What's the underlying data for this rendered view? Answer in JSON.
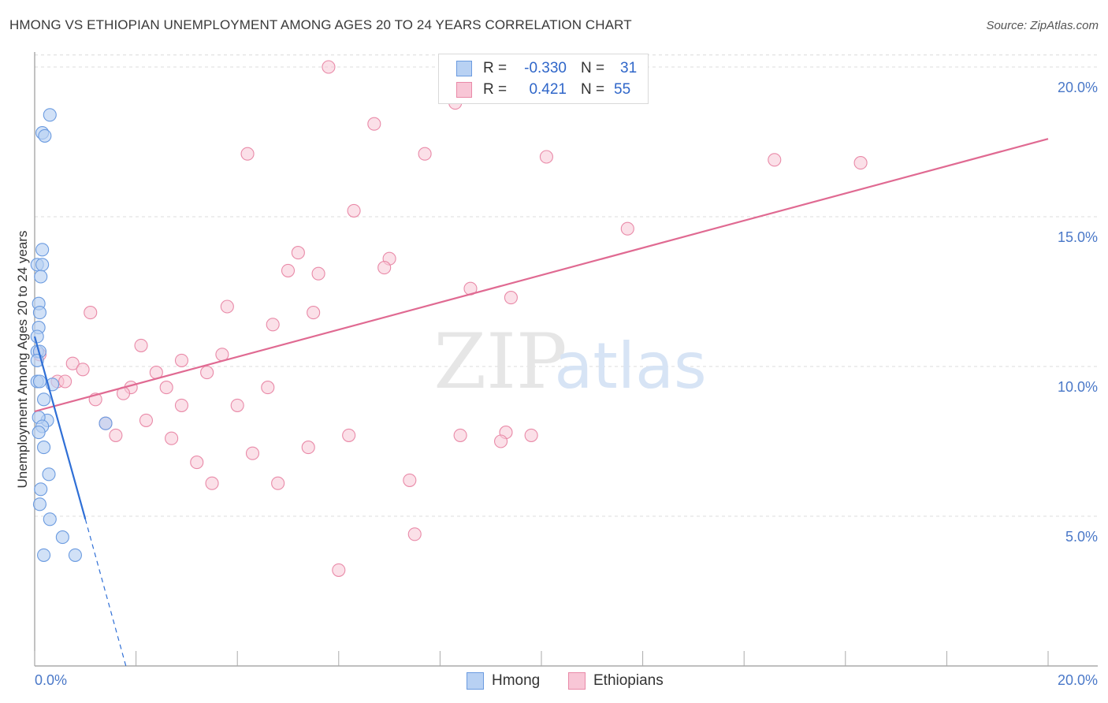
{
  "header": {
    "title": "HMONG VS ETHIOPIAN UNEMPLOYMENT AMONG AGES 20 TO 24 YEARS CORRELATION CHART",
    "source": "Source: ZipAtlas.com"
  },
  "watermark": {
    "zip": "ZIP",
    "atlas": "atlas"
  },
  "legend": {
    "rows": [
      {
        "r_label": "R =",
        "r_value": "-0.330",
        "n_label": "N =",
        "n_value": "31"
      },
      {
        "r_label": "R =",
        "r_value": "0.421",
        "n_label": "N =",
        "n_value": "55"
      }
    ]
  },
  "bottom_legend": {
    "hmong": "Hmong",
    "ethiopians": "Ethiopians"
  },
  "colors": {
    "hmong_fill": "#b8d1f3",
    "hmong_stroke": "#6b9be0",
    "hmong_line": "#2f6fd6",
    "eth_fill": "#f8c6d6",
    "eth_stroke": "#e98aa8",
    "eth_line": "#e06a92",
    "tick_text": "#4a78c8",
    "grid": "#dcdcdc"
  },
  "chart_data": {
    "type": "scatter",
    "title": "HMONG VS ETHIOPIAN UNEMPLOYMENT AMONG AGES 20 TO 24 YEARS CORRELATION CHART",
    "xlabel": "",
    "ylabel": "Unemployment Among Ages 20 to 24 years",
    "xlim": [
      0,
      20
    ],
    "ylim": [
      0,
      20.5
    ],
    "x_tick_labels": [
      "0.0%",
      "20.0%"
    ],
    "y_ticks": [
      5,
      10,
      15,
      20
    ],
    "y_tick_labels": [
      "5.0%",
      "10.0%",
      "15.0%",
      "20.0%"
    ],
    "series": [
      {
        "name": "Hmong",
        "r": -0.33,
        "n": 31,
        "points": [
          [
            0.3,
            18.4
          ],
          [
            0.15,
            17.8
          ],
          [
            0.2,
            17.7
          ],
          [
            0.15,
            13.9
          ],
          [
            0.05,
            13.4
          ],
          [
            0.15,
            13.4
          ],
          [
            0.12,
            13.0
          ],
          [
            0.08,
            12.1
          ],
          [
            0.1,
            11.8
          ],
          [
            0.08,
            11.3
          ],
          [
            0.05,
            11.0
          ],
          [
            0.05,
            10.5
          ],
          [
            0.1,
            10.5
          ],
          [
            0.05,
            10.2
          ],
          [
            0.35,
            9.4
          ],
          [
            0.05,
            9.5
          ],
          [
            0.18,
            8.9
          ],
          [
            0.25,
            8.2
          ],
          [
            0.08,
            8.3
          ],
          [
            0.15,
            8.0
          ],
          [
            0.08,
            7.8
          ],
          [
            1.4,
            8.1
          ],
          [
            0.18,
            7.3
          ],
          [
            0.28,
            6.4
          ],
          [
            0.12,
            5.9
          ],
          [
            0.1,
            5.4
          ],
          [
            0.3,
            4.9
          ],
          [
            0.55,
            4.3
          ],
          [
            0.18,
            3.7
          ],
          [
            0.8,
            3.7
          ],
          [
            0.1,
            9.5
          ]
        ],
        "trend": {
          "x0": 0.0,
          "y0": 11.0,
          "x1": 1.0,
          "y1": 4.9,
          "dash_x1": 1.8,
          "dash_y1": 0.0
        }
      },
      {
        "name": "Ethiopians",
        "r": 0.421,
        "n": 55,
        "points": [
          [
            5.8,
            20.0
          ],
          [
            8.3,
            18.8
          ],
          [
            6.7,
            18.1
          ],
          [
            4.2,
            17.1
          ],
          [
            7.7,
            17.1
          ],
          [
            10.1,
            17.0
          ],
          [
            14.6,
            16.9
          ],
          [
            16.3,
            16.8
          ],
          [
            6.3,
            15.2
          ],
          [
            11.7,
            14.6
          ],
          [
            5.2,
            13.8
          ],
          [
            7.0,
            13.6
          ],
          [
            5.0,
            13.2
          ],
          [
            5.6,
            13.1
          ],
          [
            6.9,
            13.3
          ],
          [
            8.6,
            12.6
          ],
          [
            9.4,
            12.3
          ],
          [
            3.8,
            12.0
          ],
          [
            1.1,
            11.8
          ],
          [
            5.5,
            11.8
          ],
          [
            4.7,
            11.4
          ],
          [
            2.1,
            10.7
          ],
          [
            0.1,
            10.4
          ],
          [
            2.9,
            10.2
          ],
          [
            3.7,
            10.4
          ],
          [
            0.75,
            10.1
          ],
          [
            0.95,
            9.9
          ],
          [
            2.4,
            9.8
          ],
          [
            3.4,
            9.8
          ],
          [
            0.45,
            9.5
          ],
          [
            0.6,
            9.5
          ],
          [
            2.6,
            9.3
          ],
          [
            1.9,
            9.3
          ],
          [
            4.6,
            9.3
          ],
          [
            1.75,
            9.1
          ],
          [
            1.2,
            8.9
          ],
          [
            2.9,
            8.7
          ],
          [
            4.0,
            8.7
          ],
          [
            1.4,
            8.1
          ],
          [
            2.2,
            8.2
          ],
          [
            1.6,
            7.7
          ],
          [
            2.7,
            7.6
          ],
          [
            6.2,
            7.7
          ],
          [
            8.4,
            7.7
          ],
          [
            9.3,
            7.8
          ],
          [
            9.8,
            7.7
          ],
          [
            3.2,
            6.8
          ],
          [
            4.3,
            7.1
          ],
          [
            5.4,
            7.3
          ],
          [
            3.5,
            6.1
          ],
          [
            4.8,
            6.1
          ],
          [
            7.4,
            6.2
          ],
          [
            7.5,
            4.4
          ],
          [
            6.0,
            3.2
          ],
          [
            9.2,
            7.5
          ]
        ],
        "trend": {
          "x0": 0.0,
          "y0": 8.5,
          "x1": 20.0,
          "y1": 17.6
        }
      }
    ]
  }
}
